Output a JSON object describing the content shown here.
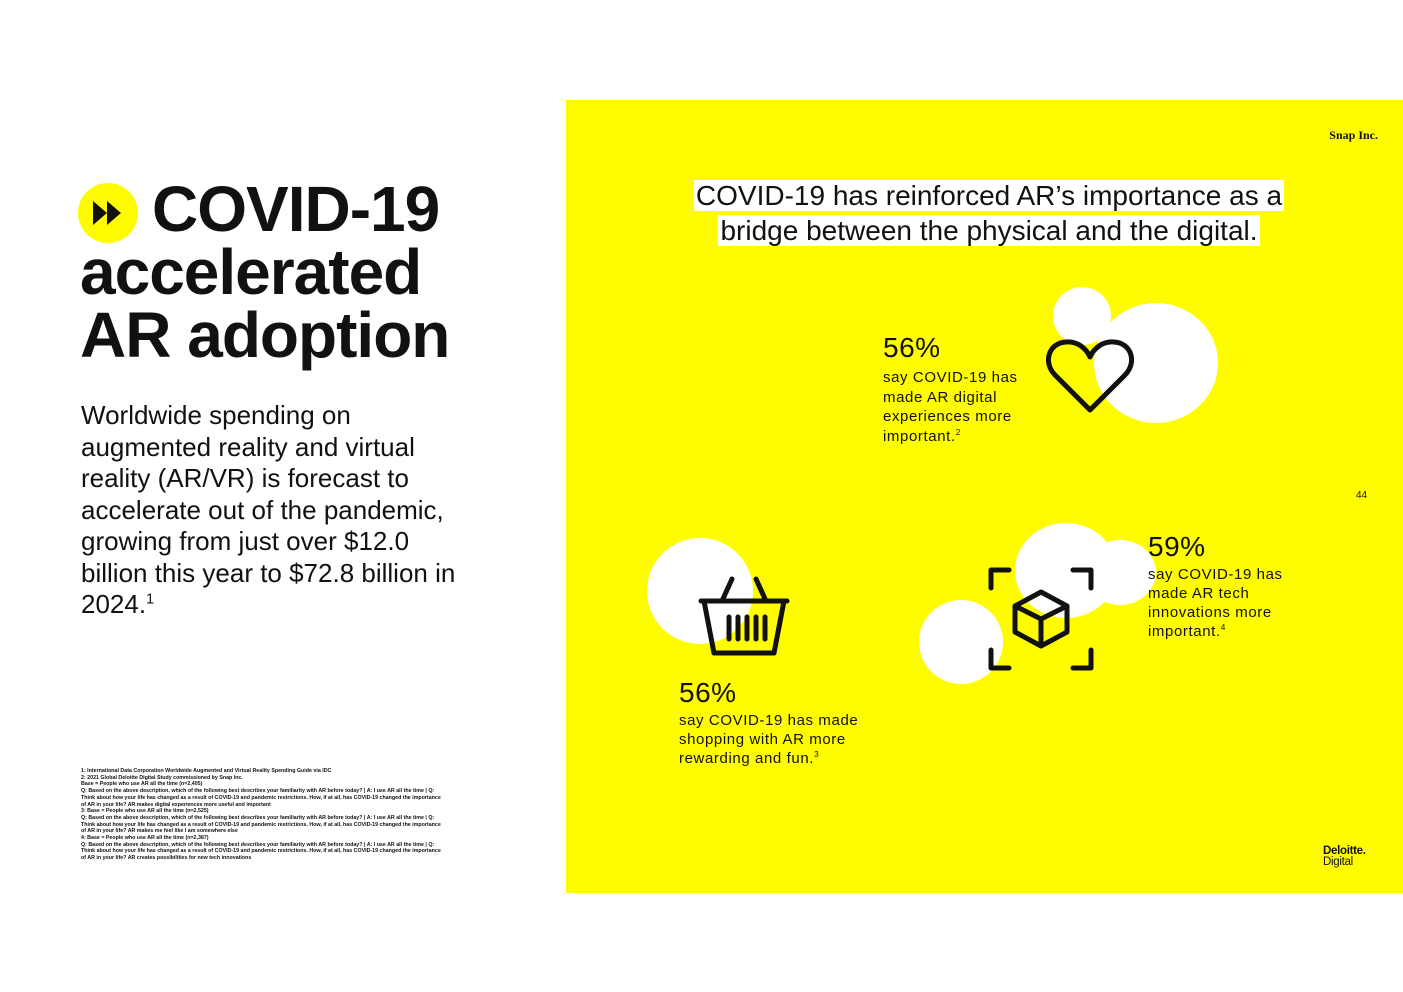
{
  "left": {
    "headline": {
      "line1": "COVID-19",
      "line2": "accelerated",
      "line3": "AR adoption"
    },
    "intro_text": "Worldwide spending on augmented reality and virtual reality (AR/VR) is forecast to accelerate out of the pandemic, growing from just over $12.0 billion this year to $72.8 billion in 2024.",
    "intro_sup": "1",
    "footnotes": [
      "1: International Data Corporation Worldwide Augmented and Virtual Reality Spending Guide via IDC",
      "2: 2021 Global Deloitte Digital Study commissioned by Snap Inc.",
      "Base = People who use AR all the time (n=2,405)",
      "Q: Based on the above description, which of the following best describes your familiarity with AR before today? | A: I use AR all the time | Q: Think about how your life has changed as a result of COVID-19 and pandemic restrictions. How, if at all, has COVID-19 changed the importance of AR in your life? AR makes digital experiences more useful and important",
      "3: Base = People who use AR all the time (n=2,525)",
      "Q: Based on the above description, which of the following best describes your familiarity with AR before today? | A: I use AR all the time | Q: Think about how your life has changed as a result of COVID-19 and pandemic restrictions. How, if at all, has COVID-19 changed the importance of AR in your life? AR makes me feel like I am somewhere else",
      "4: Base = People who use AR all the time (n=2,387)",
      "Q: Based on the above description, which of the following best describes your familiarity with AR before today? | A: I use AR all the time | Q: Think about how your life has changed as a result of COVID-19 and pandemic restrictions. How, if at all, has COVID-19 changed the importance of AR in your life? AR creates possibilities for new tech innovations"
    ]
  },
  "panel": {
    "brand_top": "Snap Inc.",
    "page_number": "44",
    "brand_bottom_line1": "Deloitte.",
    "brand_bottom_line2": "Digital",
    "banner": "COVID-19 has reinforced AR’s importance as a bridge between the physical and the digital.",
    "stats": [
      {
        "value": "56%",
        "desc": "say COVID-19 has made AR digital experiences more important.",
        "sup": "2",
        "icon": "heart-icon"
      },
      {
        "value": "59%",
        "desc": "say COVID-19 has made AR tech innovations more important.",
        "sup": "4",
        "icon": "ar-cube-icon"
      },
      {
        "value": "56%",
        "desc": "say COVID-19 has made shopping with AR more rewarding and fun.",
        "sup": "3",
        "icon": "shopping-basket-icon"
      }
    ]
  },
  "colors": {
    "accent_yellow": "#fffc00",
    "text": "#111111",
    "background": "#ffffff"
  }
}
